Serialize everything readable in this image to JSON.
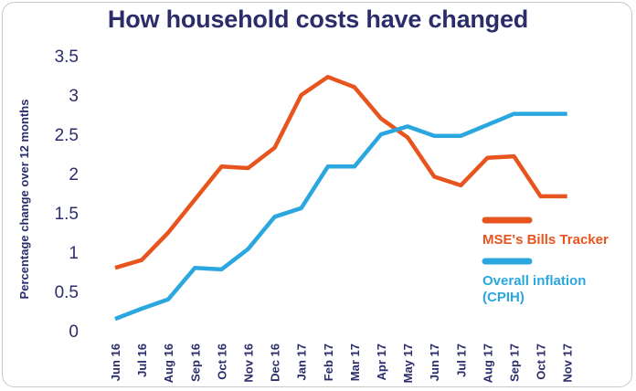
{
  "chart_data": {
    "type": "line",
    "title": "How household costs have changed",
    "ylabel": "Percentage change over 12 months",
    "xlabel": "",
    "ylim": [
      0,
      3.5
    ],
    "yticks": [
      "0",
      "0.5",
      "1",
      "1.5",
      "2",
      "2.5",
      "3",
      "3.5"
    ],
    "grid": false,
    "legend_position": "right",
    "x": [
      "Jun 16",
      "Jul 16",
      "Aug 16",
      "Sep 16",
      "Oct 16",
      "Nov 16",
      "Dec 16",
      "Jan 17",
      "Feb 17",
      "Mar 17",
      "Apr 17",
      "May 17",
      "Jun 17",
      "Jul 17",
      "Aug 17",
      "Sep 17",
      "Oct 17",
      "Nov 17"
    ],
    "series": [
      {
        "name": "MSE's Bills Tracker",
        "color": "#e8541e",
        "values": [
          0.8,
          0.9,
          1.25,
          1.67,
          2.09,
          2.07,
          2.33,
          3.0,
          3.23,
          3.1,
          2.7,
          2.46,
          1.96,
          1.85,
          2.2,
          2.22,
          1.71,
          1.71
        ]
      },
      {
        "name": "Overall inflation (CPIH)",
        "name_lines": [
          "Overall inflation",
          "(CPIH)"
        ],
        "color": "#2aa7df",
        "values": [
          0.15,
          0.28,
          0.4,
          0.8,
          0.78,
          1.04,
          1.45,
          1.56,
          2.09,
          2.09,
          2.5,
          2.6,
          2.48,
          2.48,
          2.62,
          2.76,
          2.76,
          2.76
        ]
      }
    ]
  }
}
